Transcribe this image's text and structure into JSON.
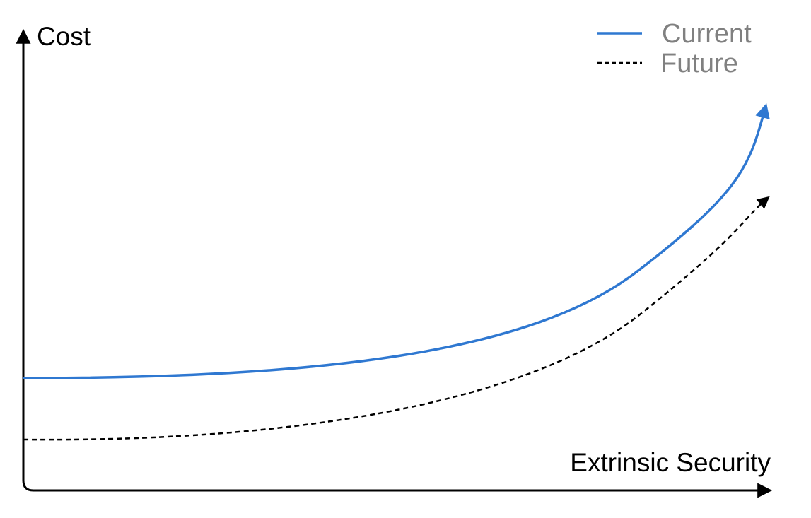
{
  "axes": {
    "y_label": "Cost",
    "x_label": "Extrinsic Security"
  },
  "legend": [
    {
      "label": "Current"
    },
    {
      "label": "Future"
    }
  ]
}
